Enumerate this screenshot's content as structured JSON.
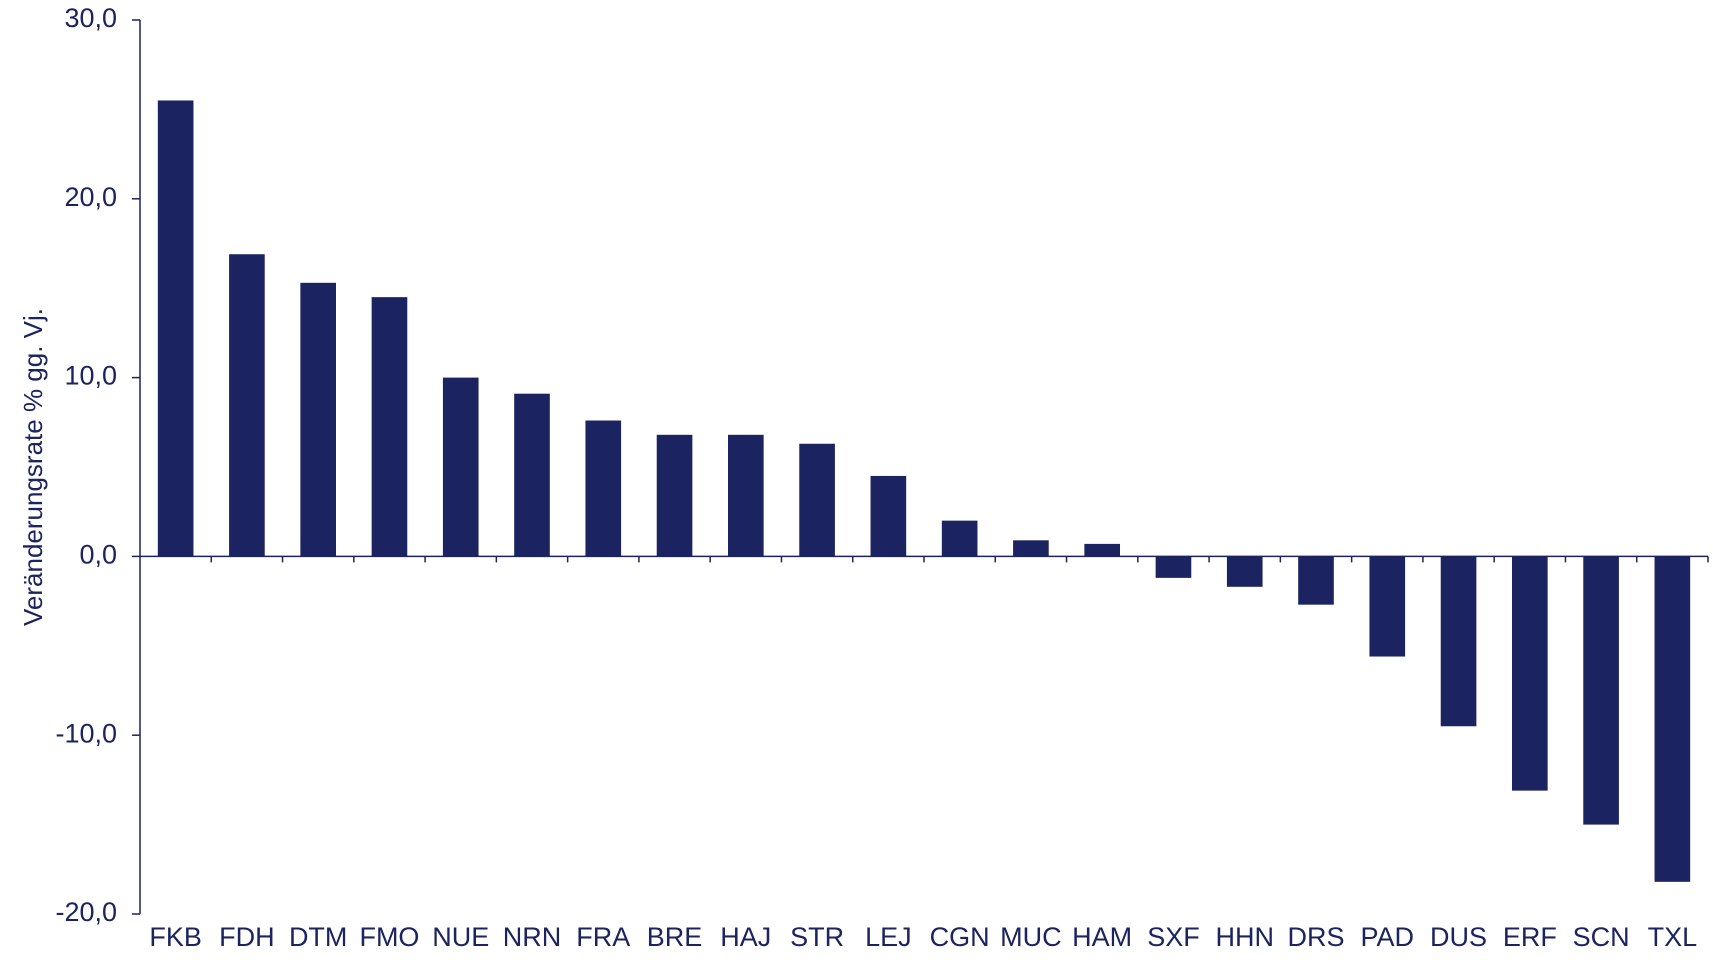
{
  "chart_data": {
    "type": "bar",
    "title": "",
    "xlabel": "",
    "ylabel": "Veränderungsrate % gg. Vj.",
    "ylim": [
      -20,
      30
    ],
    "yticks": [
      30,
      20,
      10,
      0,
      -10,
      -20
    ],
    "ytick_labels": [
      "30,0",
      "20,0",
      "10,0",
      "0,0",
      "-10,0",
      "-20,0"
    ],
    "categories": [
      "FKB",
      "FDH",
      "DTM",
      "FMO",
      "NUE",
      "NRN",
      "FRA",
      "BRE",
      "HAJ",
      "STR",
      "LEJ",
      "CGN",
      "MUC",
      "HAM",
      "SXF",
      "HHN",
      "DRS",
      "PAD",
      "DUS",
      "ERF",
      "SCN",
      "TXL"
    ],
    "values": [
      25.5,
      16.9,
      15.3,
      14.5,
      10.0,
      9.1,
      7.6,
      6.8,
      6.8,
      6.3,
      4.5,
      2.0,
      0.9,
      0.7,
      -1.2,
      -1.7,
      -2.7,
      -5.6,
      -9.5,
      -13.1,
      -15.0,
      -18.2
    ],
    "grid": false,
    "legend": "none",
    "colors": {
      "bar": "#1b2360",
      "axis": "#1b2360",
      "text": "#1b2360"
    }
  }
}
